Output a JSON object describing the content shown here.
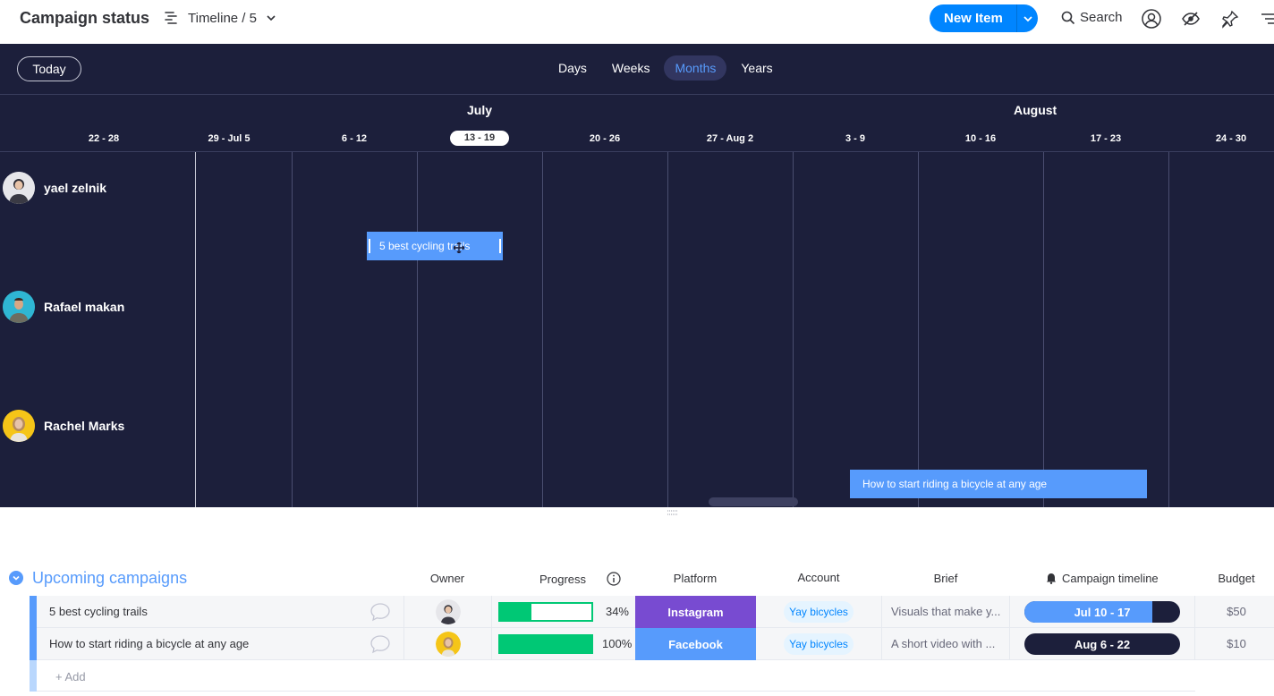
{
  "header": {
    "title": "Campaign status",
    "view_label": "Timeline / 5",
    "new_item_label": "New Item",
    "search_label": "Search"
  },
  "timeline": {
    "today_label": "Today",
    "scales": [
      "Days",
      "Weeks",
      "Months",
      "Years"
    ],
    "active_scale": "Months",
    "months": [
      "July",
      "August"
    ],
    "weeks": [
      "22 - 28",
      "29 - Jul 5",
      "6 - 12",
      "13 - 19",
      "20 - 26",
      "27 - Aug 2",
      "3 - 9",
      "10 - 16",
      "17 - 23",
      "24 - 30"
    ],
    "current_week": "13 - 19",
    "people": [
      {
        "name": "yael zelnik"
      },
      {
        "name": "Rafael makan"
      },
      {
        "name": "Rachel Marks"
      }
    ],
    "bars": [
      {
        "label": "5 best cycling trails"
      },
      {
        "label": "How to start riding a bicycle at any age"
      }
    ]
  },
  "table": {
    "group_title": "Upcoming campaigns",
    "group_color": "#579bfc",
    "columns": {
      "owner": "Owner",
      "progress": "Progress",
      "platform": "Platform",
      "account": "Account",
      "brief": "Brief",
      "campaign_timeline": "Campaign timeline",
      "budget": "Budget"
    },
    "rows": [
      {
        "name": "5 best cycling trails",
        "progress": 34,
        "progress_label": "34%",
        "platform": "Instagram",
        "platform_color": "#784bd1",
        "account": "Yay bicycles",
        "brief": "Visuals that make y...",
        "campaign_timeline": "Jul 10 - 17",
        "timeline_elapsed": 0.82,
        "budget": "$50"
      },
      {
        "name": "How to start riding a bicycle at any age",
        "progress": 100,
        "progress_label": "100%",
        "platform": "Facebook",
        "platform_color": "#579bfc",
        "account": "Yay bicycles",
        "brief": "A short video with ...",
        "campaign_timeline": "Aug 6 - 22",
        "timeline_elapsed": 0,
        "budget": "$10"
      }
    ],
    "add_label": "+ Add"
  }
}
